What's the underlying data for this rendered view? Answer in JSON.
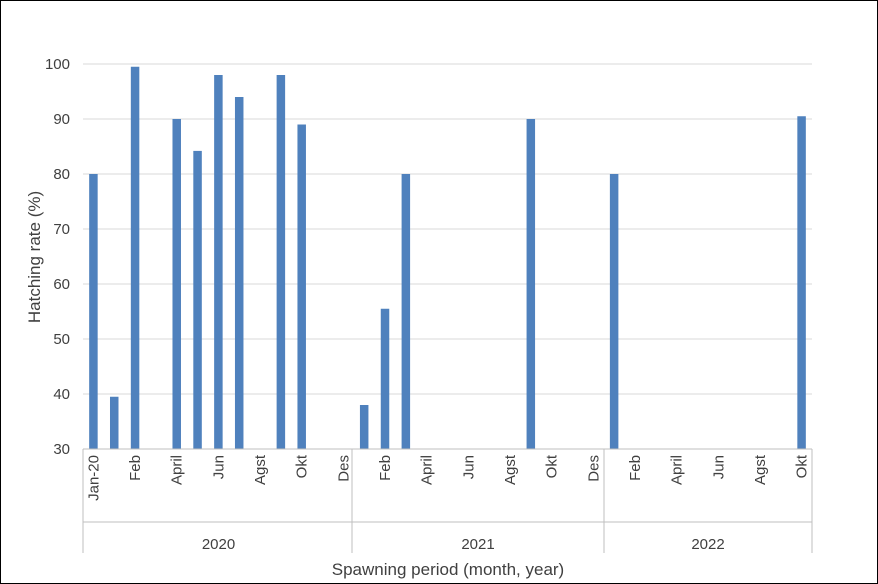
{
  "chart_data": {
    "type": "bar",
    "title": "",
    "xlabel": "Spawning period (month, year)",
    "ylabel": "Hatching rate (%)",
    "ylim": [
      30,
      100
    ],
    "yticks": [
      "30",
      "40",
      "50",
      "60",
      "70",
      "80",
      "90",
      "100"
    ],
    "grid": true,
    "legend": "none",
    "bar_color": "#4f81bd",
    "year_groups": [
      "2020",
      "2021",
      "2022"
    ],
    "categories": [
      "Jan-20",
      "",
      "Feb",
      "",
      "April",
      "",
      "Jun",
      "",
      "Agst",
      "",
      "Okt",
      "",
      "Des",
      "",
      "Feb",
      "",
      "April",
      "",
      "Jun",
      "",
      "Agst",
      "",
      "Okt",
      "",
      "Des",
      "",
      "Feb",
      "",
      "April",
      "",
      "Jun",
      "",
      "Agst",
      "",
      "Okt"
    ],
    "values": [
      80,
      39.5,
      99.5,
      null,
      90,
      84.2,
      98,
      94,
      null,
      98,
      89,
      null,
      null,
      38,
      55.5,
      80,
      null,
      null,
      null,
      null,
      null,
      90,
      null,
      null,
      null,
      80,
      null,
      null,
      null,
      null,
      null,
      null,
      null,
      null,
      90.5
    ]
  }
}
